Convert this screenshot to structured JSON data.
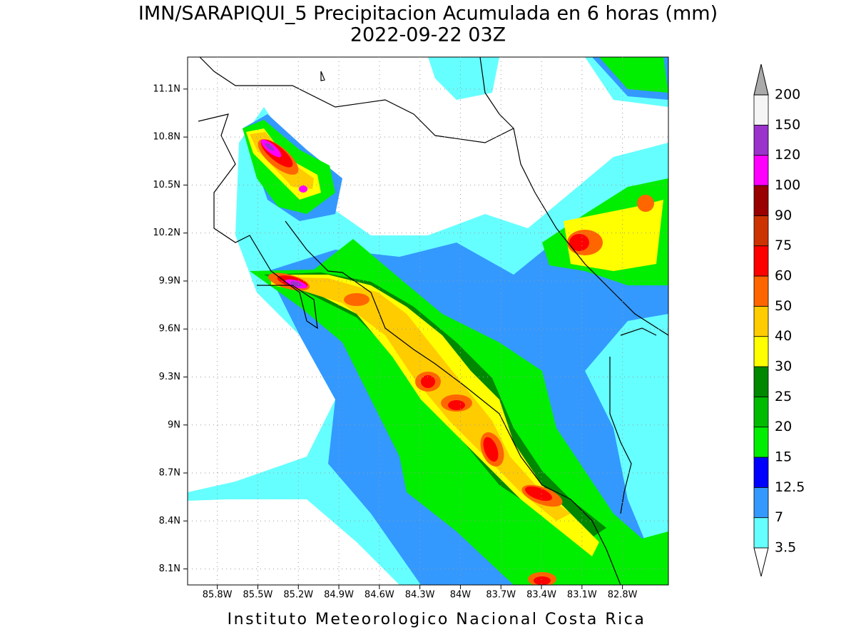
{
  "title": "IMN/SARAPIQUI_5 Precipitacion Acumulada en 6 horas (mm)",
  "subtitle": "2022-09-22 03Z",
  "map": {
    "xlim": [
      -86.02,
      -82.46
    ],
    "ylim": [
      8.0,
      11.3
    ],
    "grid": true,
    "xticks": [
      {
        "value": -85.8,
        "label": "85.8W"
      },
      {
        "value": -85.5,
        "label": "85.5W"
      },
      {
        "value": -85.2,
        "label": "85.2W"
      },
      {
        "value": -84.9,
        "label": "84.9W"
      },
      {
        "value": -84.6,
        "label": "84.6W"
      },
      {
        "value": -84.3,
        "label": "84.3W"
      },
      {
        "value": -84.0,
        "label": "84W"
      },
      {
        "value": -83.7,
        "label": "83.7W"
      },
      {
        "value": -83.4,
        "label": "83.4W"
      },
      {
        "value": -83.1,
        "label": "83.1W"
      },
      {
        "value": -82.8,
        "label": "82.8W"
      }
    ],
    "yticks": [
      {
        "value": 8.1,
        "label": "8.1N"
      },
      {
        "value": 8.4,
        "label": "8.4N"
      },
      {
        "value": 8.7,
        "label": "8.7N"
      },
      {
        "value": 9.0,
        "label": "9N"
      },
      {
        "value": 9.3,
        "label": "9.3N"
      },
      {
        "value": 9.6,
        "label": "9.6N"
      },
      {
        "value": 9.9,
        "label": "9.9N"
      },
      {
        "value": 10.2,
        "label": "10.2N"
      },
      {
        "value": 10.5,
        "label": "10.5N"
      },
      {
        "value": 10.8,
        "label": "10.8N"
      },
      {
        "value": 11.1,
        "label": "11.1N"
      }
    ]
  },
  "colorbar": {
    "levels": [
      3.5,
      7,
      12.5,
      15,
      20,
      25,
      30,
      40,
      50,
      60,
      75,
      90,
      100,
      120,
      150,
      200
    ],
    "colors": [
      "#ffffff",
      "#66ffff",
      "#3399ff",
      "#0000ff",
      "#00ee00",
      "#00bb00",
      "#008800",
      "#ffff00",
      "#ffcc00",
      "#ff6600",
      "#ff0000",
      "#cc3300",
      "#990000",
      "#ff00ff",
      "#9933cc",
      "#f5f5f5",
      "#aaaaaa"
    ]
  },
  "footer": "Instituto Meteorologico Nacional Costa Rica"
}
